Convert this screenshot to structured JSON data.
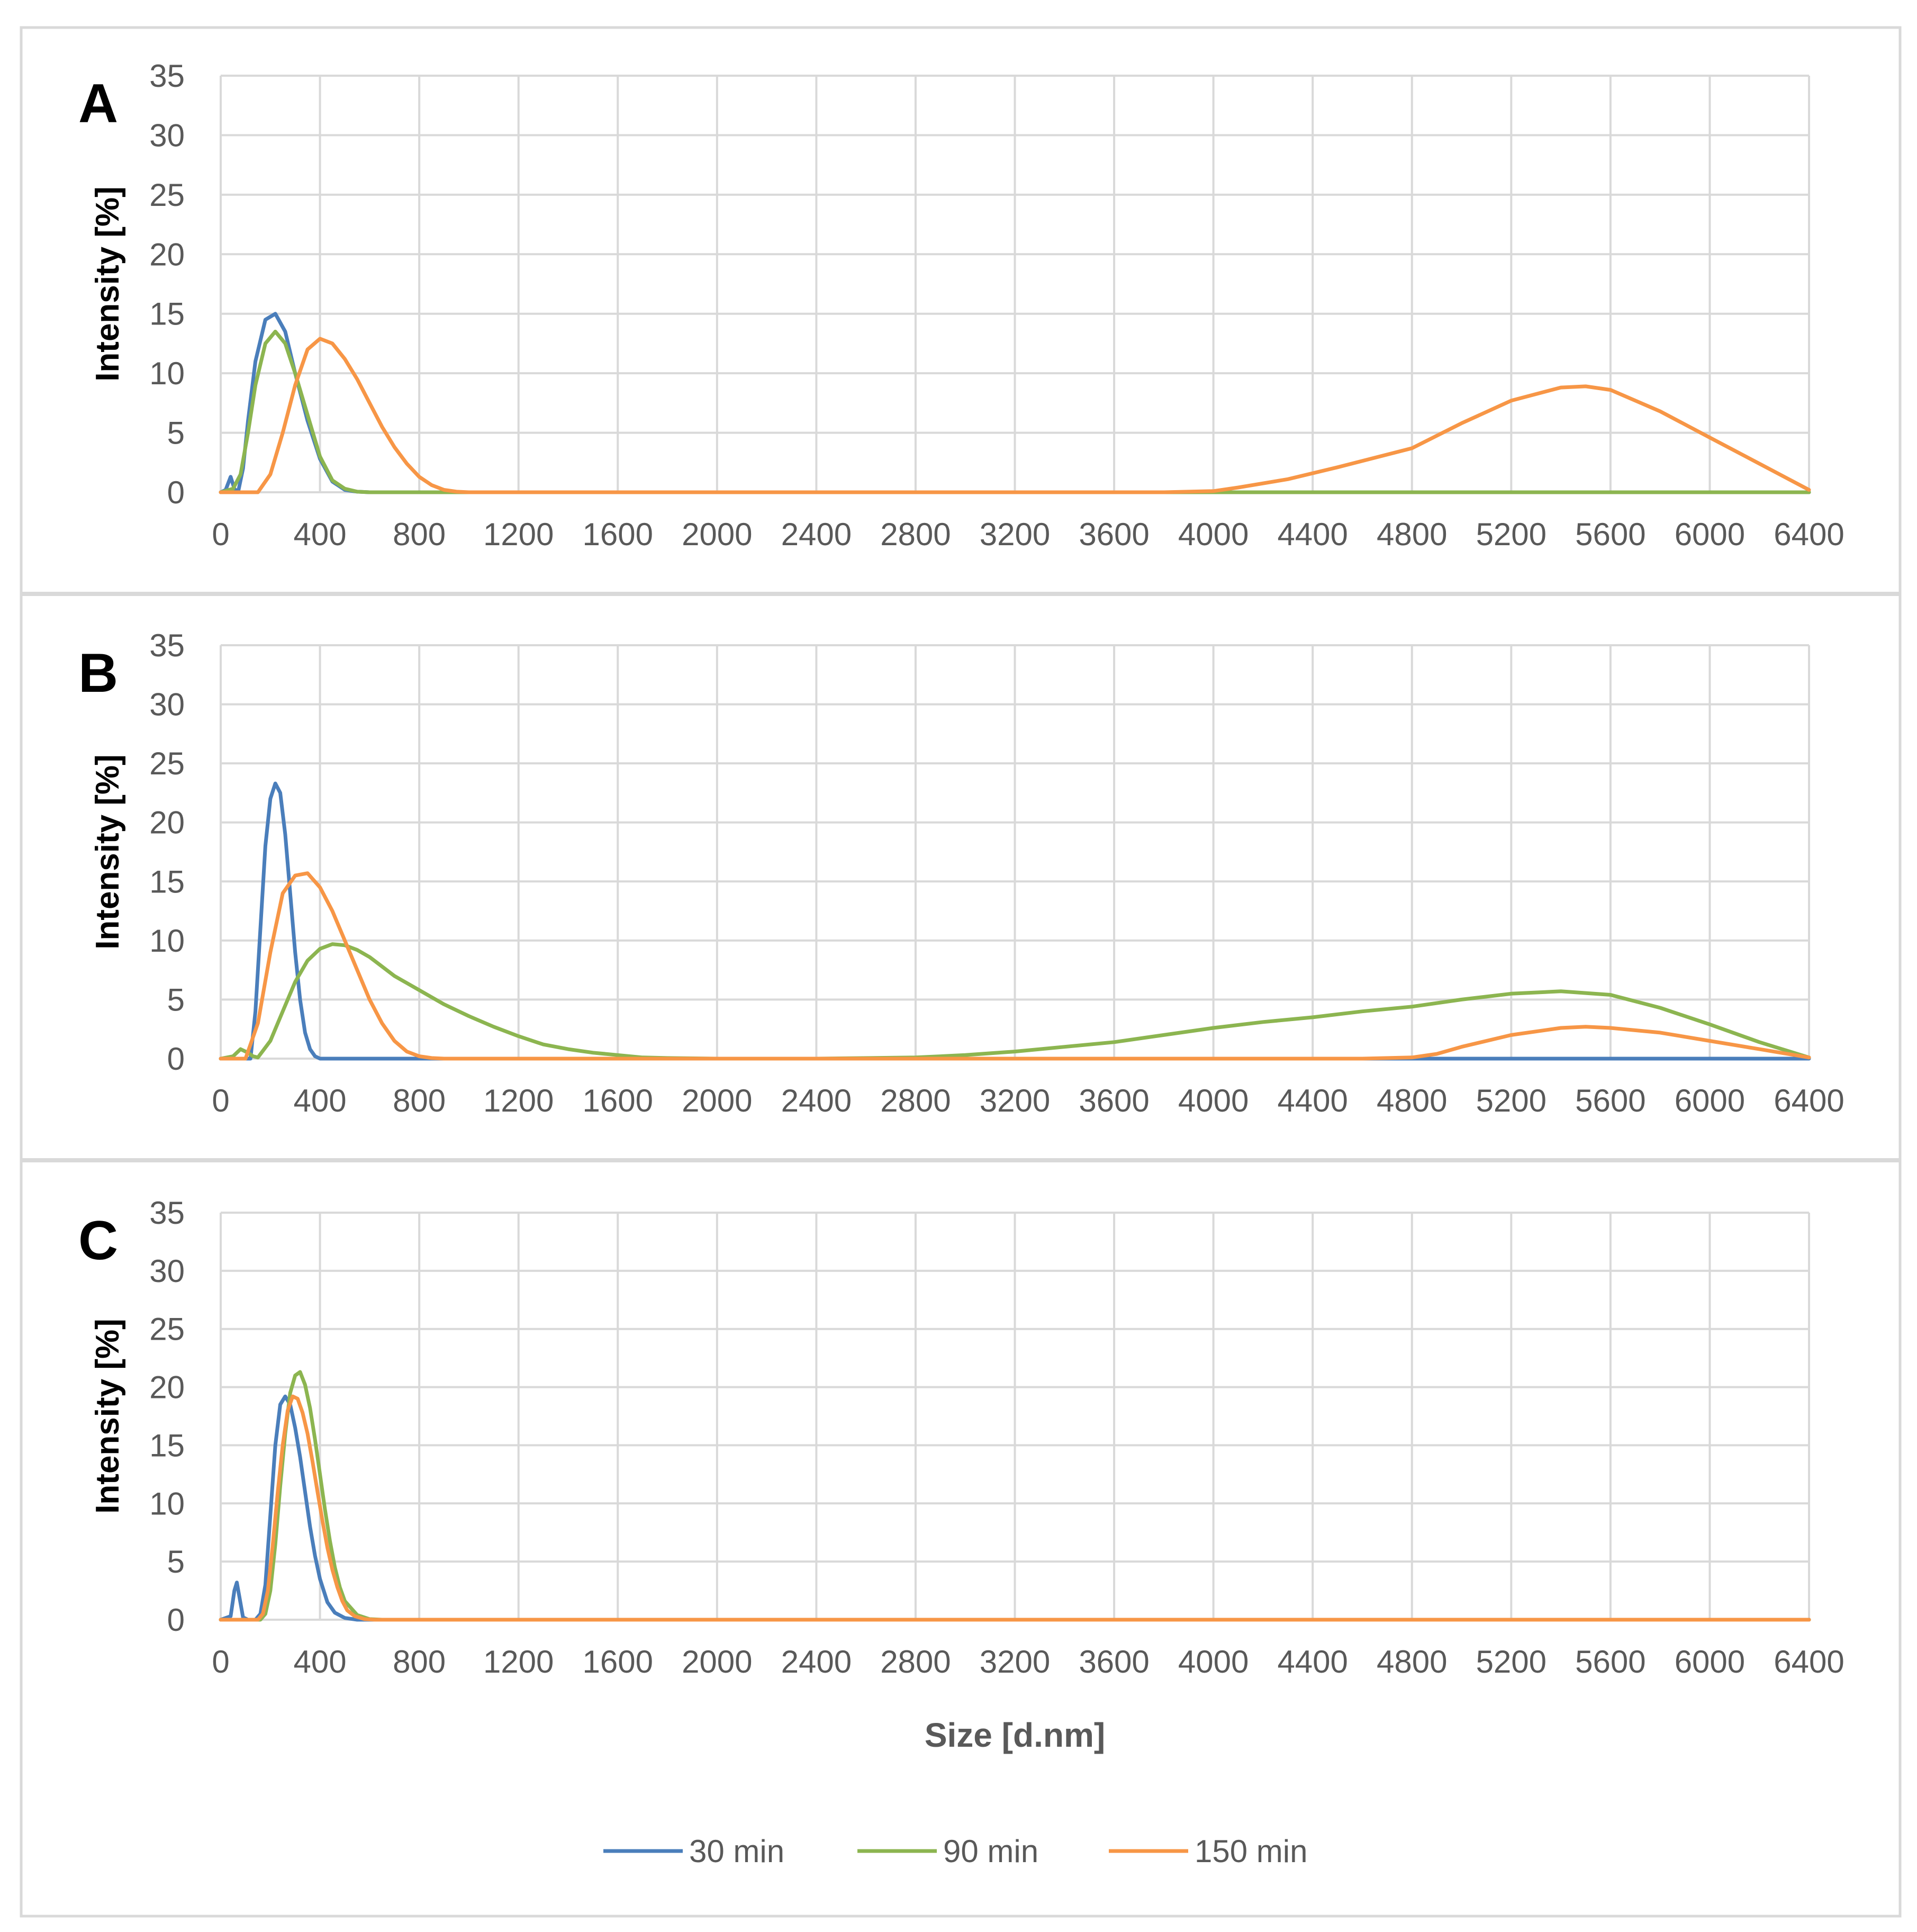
{
  "colors": {
    "series_30": "#4a7ebb",
    "series_90": "#8cb550",
    "series_150": "#f79646",
    "grid": "#d9d9d9",
    "text": "#595959",
    "frame": "#d9d9d9"
  },
  "xlabel": "Size [d.nm]",
  "legend": [
    "30 min",
    "90 min",
    "150 min"
  ],
  "chart_data": [
    {
      "type": "line",
      "panel_label": "A",
      "ylabel": "Intensity [%]",
      "xlabel": "",
      "xlim": [
        0,
        6400
      ],
      "ylim": [
        0,
        35
      ],
      "xticks": [
        "0",
        "400",
        "800",
        "1200",
        "1600",
        "2000",
        "2400",
        "2800",
        "3200",
        "3600",
        "4000",
        "4400",
        "4800",
        "5200",
        "5600",
        "6000",
        "6400"
      ],
      "yticks": [
        "0",
        "5",
        "10",
        "15",
        "20",
        "25",
        "30",
        "35"
      ],
      "series": [
        {
          "name": "30 min",
          "color_key": "series_30",
          "x": [
            0,
            20,
            40,
            55,
            70,
            90,
            110,
            140,
            180,
            220,
            260,
            300,
            350,
            400,
            450,
            500,
            550,
            600,
            800,
            1600,
            3200,
            4800,
            6400
          ],
          "y": [
            0,
            0.2,
            1.3,
            0.3,
            0,
            2,
            6,
            11,
            14.5,
            15,
            13.5,
            10,
            6,
            2.8,
            0.9,
            0.2,
            0.05,
            0,
            0,
            0,
            0,
            0,
            0
          ]
        },
        {
          "name": "90 min",
          "color_key": "series_90",
          "x": [
            0,
            50,
            80,
            110,
            140,
            180,
            220,
            260,
            300,
            350,
            400,
            450,
            500,
            550,
            600,
            800,
            1600,
            3200,
            4800,
            6400
          ],
          "y": [
            0,
            0.3,
            1.5,
            5,
            9,
            12.5,
            13.5,
            12.5,
            10,
            6.5,
            3,
            1,
            0.3,
            0.05,
            0,
            0,
            0,
            0,
            0,
            0
          ]
        },
        {
          "name": "150 min",
          "color_key": "series_150",
          "x": [
            0,
            150,
            200,
            250,
            300,
            350,
            400,
            450,
            500,
            550,
            600,
            650,
            700,
            750,
            800,
            850,
            900,
            950,
            1000,
            1200,
            1600,
            2400,
            3200,
            3800,
            4000,
            4100,
            4300,
            4500,
            4800,
            5000,
            5200,
            5400,
            5500,
            5600,
            5800,
            6000,
            6200,
            6400
          ],
          "y": [
            0,
            0,
            1.5,
            5,
            9,
            12,
            12.9,
            12.5,
            11.2,
            9.5,
            7.5,
            5.5,
            3.8,
            2.4,
            1.3,
            0.6,
            0.2,
            0.05,
            0,
            0,
            0,
            0,
            0,
            0,
            0.1,
            0.4,
            1.1,
            2.1,
            3.7,
            5.8,
            7.7,
            8.8,
            8.9,
            8.6,
            6.8,
            4.6,
            2.4,
            0.2
          ]
        }
      ]
    },
    {
      "type": "line",
      "panel_label": "B",
      "ylabel": "Intensity [%]",
      "xlabel": "",
      "xlim": [
        0,
        6400
      ],
      "ylim": [
        0,
        35
      ],
      "xticks": [
        "0",
        "400",
        "800",
        "1200",
        "1600",
        "2000",
        "2400",
        "2800",
        "3200",
        "3600",
        "4000",
        "4400",
        "4800",
        "5200",
        "5600",
        "6000",
        "6400"
      ],
      "yticks": [
        "0",
        "5",
        "10",
        "15",
        "20",
        "25",
        "30",
        "35"
      ],
      "series": [
        {
          "name": "30 min",
          "color_key": "series_30",
          "x": [
            0,
            120,
            140,
            160,
            180,
            200,
            220,
            240,
            260,
            280,
            300,
            320,
            340,
            360,
            380,
            400,
            420,
            440,
            600,
            1600,
            3200,
            4800,
            6400
          ],
          "y": [
            0,
            0,
            4,
            11,
            18,
            22,
            23.3,
            22.5,
            19,
            14,
            9,
            5,
            2.2,
            0.8,
            0.2,
            0,
            0,
            0,
            0,
            0,
            0,
            0,
            0
          ]
        },
        {
          "name": "90 min",
          "color_key": "series_90",
          "x": [
            0,
            50,
            80,
            110,
            130,
            150,
            200,
            250,
            300,
            350,
            400,
            450,
            500,
            550,
            600,
            650,
            700,
            800,
            900,
            1000,
            1100,
            1200,
            1300,
            1400,
            1500,
            1600,
            1700,
            1800,
            2000,
            2400,
            2800,
            3000,
            3200,
            3400,
            3600,
            3800,
            4000,
            4200,
            4400,
            4600,
            4800,
            5000,
            5200,
            5400,
            5600,
            5800,
            6000,
            6200,
            6400
          ],
          "y": [
            0,
            0.2,
            0.8,
            0.5,
            0.2,
            0.1,
            1.5,
            4,
            6.5,
            8.3,
            9.3,
            9.7,
            9.6,
            9.2,
            8.6,
            7.8,
            7,
            5.8,
            4.6,
            3.6,
            2.7,
            1.9,
            1.2,
            0.8,
            0.5,
            0.3,
            0.1,
            0.05,
            0,
            0,
            0.1,
            0.3,
            0.6,
            1,
            1.4,
            2,
            2.6,
            3.1,
            3.5,
            4,
            4.4,
            5,
            5.5,
            5.7,
            5.4,
            4.3,
            2.9,
            1.4,
            0.1
          ]
        },
        {
          "name": "150 min",
          "color_key": "series_150",
          "x": [
            0,
            100,
            150,
            200,
            250,
            300,
            350,
            400,
            450,
            500,
            550,
            600,
            650,
            700,
            750,
            800,
            850,
            900,
            1600,
            3200,
            4600,
            4800,
            4900,
            5000,
            5200,
            5400,
            5500,
            5600,
            5800,
            6000,
            6200,
            6400
          ],
          "y": [
            0,
            0,
            3,
            9,
            14,
            15.5,
            15.7,
            14.5,
            12.5,
            10,
            7.5,
            5,
            3,
            1.5,
            0.6,
            0.2,
            0.05,
            0,
            0,
            0,
            0,
            0.1,
            0.4,
            1,
            2,
            2.6,
            2.7,
            2.6,
            2.2,
            1.5,
            0.8,
            0.1
          ]
        }
      ]
    },
    {
      "type": "line",
      "panel_label": "C",
      "ylabel": "Intensity [%]",
      "xlabel": "Size [d.nm]",
      "xlim": [
        0,
        6400
      ],
      "ylim": [
        0,
        35
      ],
      "xticks": [
        "0",
        "400",
        "800",
        "1200",
        "1600",
        "2000",
        "2400",
        "2800",
        "3200",
        "3600",
        "4000",
        "4400",
        "4800",
        "5200",
        "5600",
        "6000",
        "6400"
      ],
      "yticks": [
        "0",
        "5",
        "10",
        "15",
        "20",
        "25",
        "30",
        "35"
      ],
      "series": [
        {
          "name": "30 min",
          "color_key": "series_30",
          "x": [
            0,
            40,
            55,
            65,
            75,
            90,
            110,
            140,
            160,
            180,
            200,
            220,
            240,
            260,
            280,
            300,
            320,
            340,
            360,
            380,
            400,
            430,
            460,
            500,
            550,
            600,
            800,
            1600,
            3200,
            4800,
            6400
          ],
          "y": [
            0,
            0.3,
            2.5,
            3.2,
            2,
            0.2,
            0,
            0,
            0.5,
            3,
            9,
            15,
            18.5,
            19.2,
            18.5,
            16.5,
            14,
            11,
            8,
            5.5,
            3.5,
            1.5,
            0.6,
            0.15,
            0,
            0,
            0,
            0,
            0,
            0,
            0
          ]
        },
        {
          "name": "90 min",
          "color_key": "series_90",
          "x": [
            0,
            160,
            180,
            200,
            220,
            240,
            260,
            280,
            300,
            320,
            340,
            360,
            380,
            400,
            420,
            440,
            460,
            480,
            500,
            550,
            600,
            650,
            800,
            1600,
            3200,
            4800,
            6400
          ],
          "y": [
            0,
            0,
            0.5,
            2.5,
            6.5,
            11.5,
            16,
            19.5,
            21,
            21.3,
            20.2,
            18.2,
            15.5,
            12.5,
            9.5,
            6.8,
            4.5,
            2.8,
            1.6,
            0.4,
            0.05,
            0,
            0,
            0,
            0,
            0,
            0
          ]
        },
        {
          "name": "150 min",
          "color_key": "series_150",
          "x": [
            0,
            150,
            170,
            190,
            210,
            230,
            250,
            270,
            290,
            310,
            330,
            350,
            370,
            390,
            410,
            430,
            450,
            470,
            490,
            510,
            540,
            580,
            620,
            800,
            1600,
            3200,
            4800,
            6400
          ],
          "y": [
            0,
            0,
            0.5,
            2.5,
            6.5,
            11,
            15,
            18,
            19.2,
            19,
            17.8,
            16,
            13.6,
            11,
            8.5,
            6.2,
            4.3,
            2.8,
            1.6,
            0.8,
            0.3,
            0.05,
            0,
            0,
            0,
            0,
            0,
            0
          ]
        }
      ]
    }
  ]
}
